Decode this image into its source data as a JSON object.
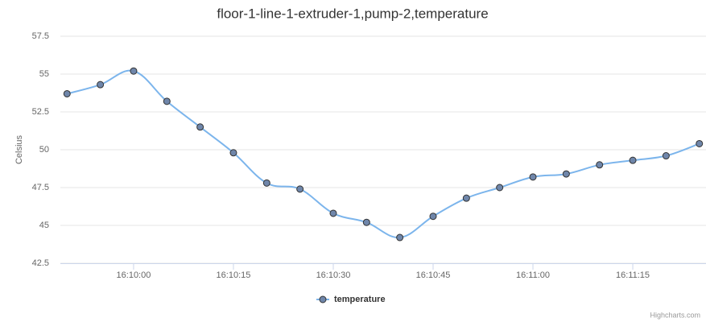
{
  "chart_data": {
    "type": "line",
    "title": "floor-1-line-1-extruder-1,pump-2,temperature",
    "y_label": "Celsius",
    "x": [
      "16:09:50",
      "16:09:55",
      "16:10:00",
      "16:10:05",
      "16:10:10",
      "16:10:15",
      "16:10:20",
      "16:10:25",
      "16:10:30",
      "16:10:35",
      "16:10:40",
      "16:10:45",
      "16:10:50",
      "16:10:55",
      "16:11:00",
      "16:11:05",
      "16:11:10",
      "16:11:15",
      "16:11:20",
      "16:11:25"
    ],
    "series": [
      {
        "name": "temperature",
        "color": "#7cb5ec",
        "marker_color": "#6f86aa",
        "values": [
          53.7,
          54.3,
          55.2,
          53.2,
          51.5,
          49.8,
          47.8,
          47.4,
          45.8,
          45.2,
          44.2,
          45.6,
          46.8,
          47.5,
          48.2,
          48.4,
          49.0,
          49.3,
          49.6,
          50.4
        ]
      }
    ],
    "xlim": [
      "16:09:49",
      "16:11:26"
    ],
    "xticks": [
      "16:10:00",
      "16:10:15",
      "16:10:30",
      "16:10:45",
      "16:11:00",
      "16:11:15"
    ],
    "ylim": [
      42.5,
      57.5
    ],
    "yticks": [
      42.5,
      45,
      47.5,
      50,
      52.5,
      55,
      57.5
    ],
    "grid": true,
    "legend": "bottom",
    "credits": "Highcharts.com"
  }
}
